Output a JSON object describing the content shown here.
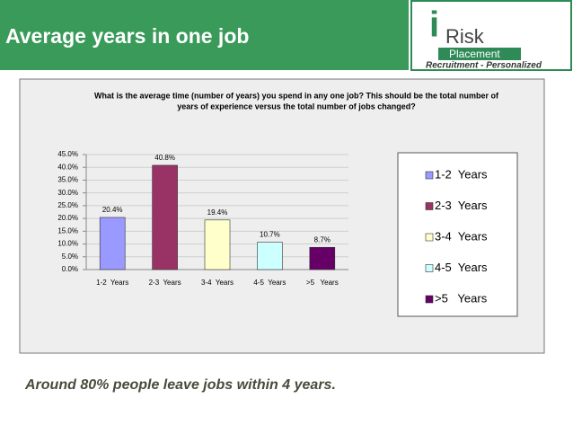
{
  "header": {
    "title": "Average years in one job"
  },
  "logo": {
    "mark": "i",
    "name": "Risk",
    "sub": "Placement",
    "tagline": "Recruitment - Personalized"
  },
  "chart_data": {
    "type": "bar",
    "title": "What is the average time (number of years) you spend in any one job? This should be the total number of",
    "subtitle": "years of experience versus the total number of jobs changed?",
    "categories": [
      "1-2  Years",
      "2-3  Years",
      "3-4  Years",
      "4-5  Years",
      ">5   Years"
    ],
    "values": [
      20.4,
      40.8,
      19.4,
      10.7,
      8.7
    ],
    "value_labels": [
      "20.4%",
      "40.8%",
      "19.4%",
      "10.7%",
      "8.7%"
    ],
    "colors": [
      "#9999ff",
      "#993366",
      "#ffffcc",
      "#ccffff",
      "#660066"
    ],
    "ylim": [
      0,
      45
    ],
    "yticks": [
      {
        "value": 0,
        "label": "0.0%"
      },
      {
        "value": 5,
        "label": "5.0%"
      },
      {
        "value": 10,
        "label": "10.0%"
      },
      {
        "value": 15,
        "label": "15.0%"
      },
      {
        "value": 20,
        "label": "20.0%"
      },
      {
        "value": 25,
        "label": "25.0%"
      },
      {
        "value": 30,
        "label": "30.0%"
      },
      {
        "value": 35,
        "label": "35.0%"
      },
      {
        "value": 40,
        "label": "40.0%"
      },
      {
        "value": 45,
        "label": "45.0%"
      }
    ],
    "grid": true,
    "legend": "right"
  },
  "caption": "Around 80% people leave jobs within 4 years."
}
